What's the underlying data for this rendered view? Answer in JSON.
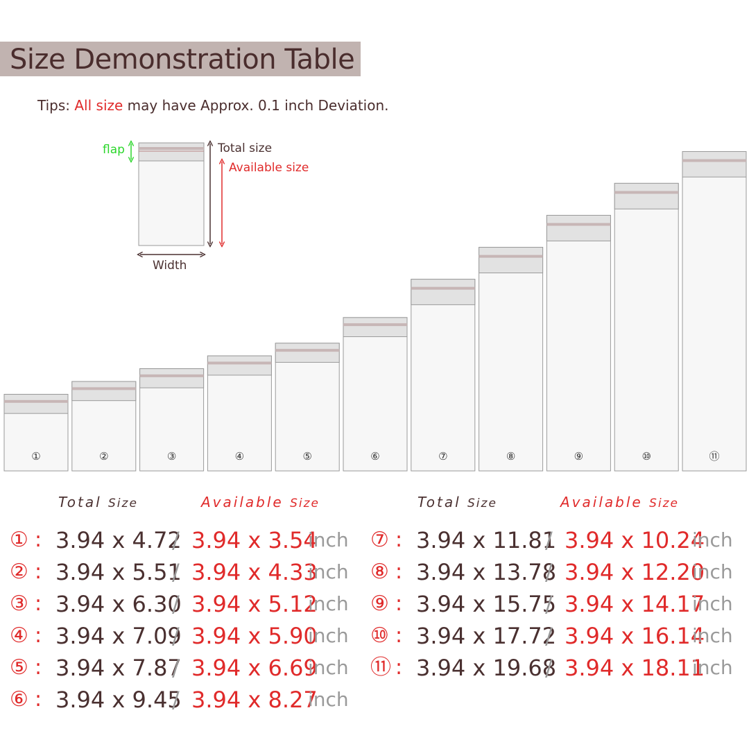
{
  "title": "Size Demonstration Table",
  "tips": {
    "prefix": "Tips: ",
    "highlight": "All size",
    "suffix": " may have Approx. 0.1 inch Deviation."
  },
  "legend": {
    "flap": "flap",
    "total": "Total size",
    "available": "Available size",
    "width": "Width"
  },
  "headers": {
    "total_word": "Total",
    "available_word": "Available",
    "size_word": "Size"
  },
  "unit": "inch",
  "colors": {
    "brand": "#4a3030",
    "accent": "#e02a2a",
    "flap_marker": "#2bd62b",
    "title_bar": "#c1b3b0"
  },
  "sizes": [
    {
      "label": "①",
      "total": "3.94 x 4.72",
      "available": "3.94 x 3.54",
      "total_h": 4.72,
      "avail_h": 3.54
    },
    {
      "label": "②",
      "total": "3.94 x 5.51",
      "available": "3.94 x 4.33",
      "total_h": 5.51,
      "avail_h": 4.33
    },
    {
      "label": "③",
      "total": "3.94 x 6.30",
      "available": "3.94 x 5.12",
      "total_h": 6.3,
      "avail_h": 5.12
    },
    {
      "label": "④",
      "total": "3.94 x 7.09",
      "available": "3.94 x 5.90",
      "total_h": 7.09,
      "avail_h": 5.9
    },
    {
      "label": "⑤",
      "total": "3.94 x 7.87",
      "available": "3.94 x 6.69",
      "total_h": 7.87,
      "avail_h": 6.69
    },
    {
      "label": "⑥",
      "total": "3.94 x 9.45",
      "available": "3.94 x 8.27",
      "total_h": 9.45,
      "avail_h": 8.27
    },
    {
      "label": "⑦",
      "total": "3.94 x 11.81",
      "available": "3.94 x 10.24",
      "total_h": 11.81,
      "avail_h": 10.24
    },
    {
      "label": "⑧",
      "total": "3.94 x 13.78",
      "available": "3.94 x 12.20",
      "total_h": 13.78,
      "avail_h": 12.2
    },
    {
      "label": "⑨",
      "total": "3.94 x 15.75",
      "available": "3.94 x 14.17",
      "total_h": 15.75,
      "avail_h": 14.17
    },
    {
      "label": "⑩",
      "total": "3.94 x 17.72",
      "available": "3.94 x 16.14",
      "total_h": 17.72,
      "avail_h": 16.14
    },
    {
      "label": "⑪",
      "total": "3.94 x 19.68",
      "available": "3.94 x 18.11",
      "total_h": 19.68,
      "avail_h": 18.11
    }
  ]
}
